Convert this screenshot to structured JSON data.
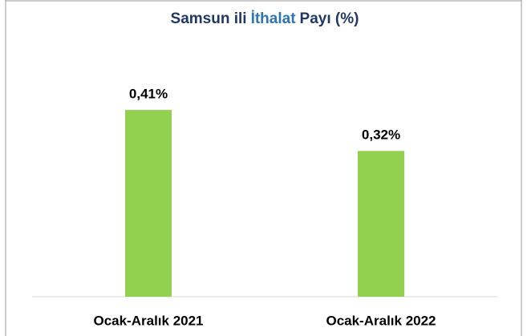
{
  "chart_data": {
    "type": "bar",
    "title_parts": [
      "Samsun ili",
      "İthalat",
      "Payı (%)"
    ],
    "title_colors": [
      "#1f3864",
      "#2e75b6",
      "#1f3864"
    ],
    "categories": [
      "Ocak-Aralık 2021",
      "Ocak-Aralık 2022"
    ],
    "values": [
      0.41,
      0.32
    ],
    "value_labels": [
      "0,41%",
      "0,32%"
    ],
    "color": "#92d050",
    "ylim": [
      0,
      0.5
    ]
  }
}
